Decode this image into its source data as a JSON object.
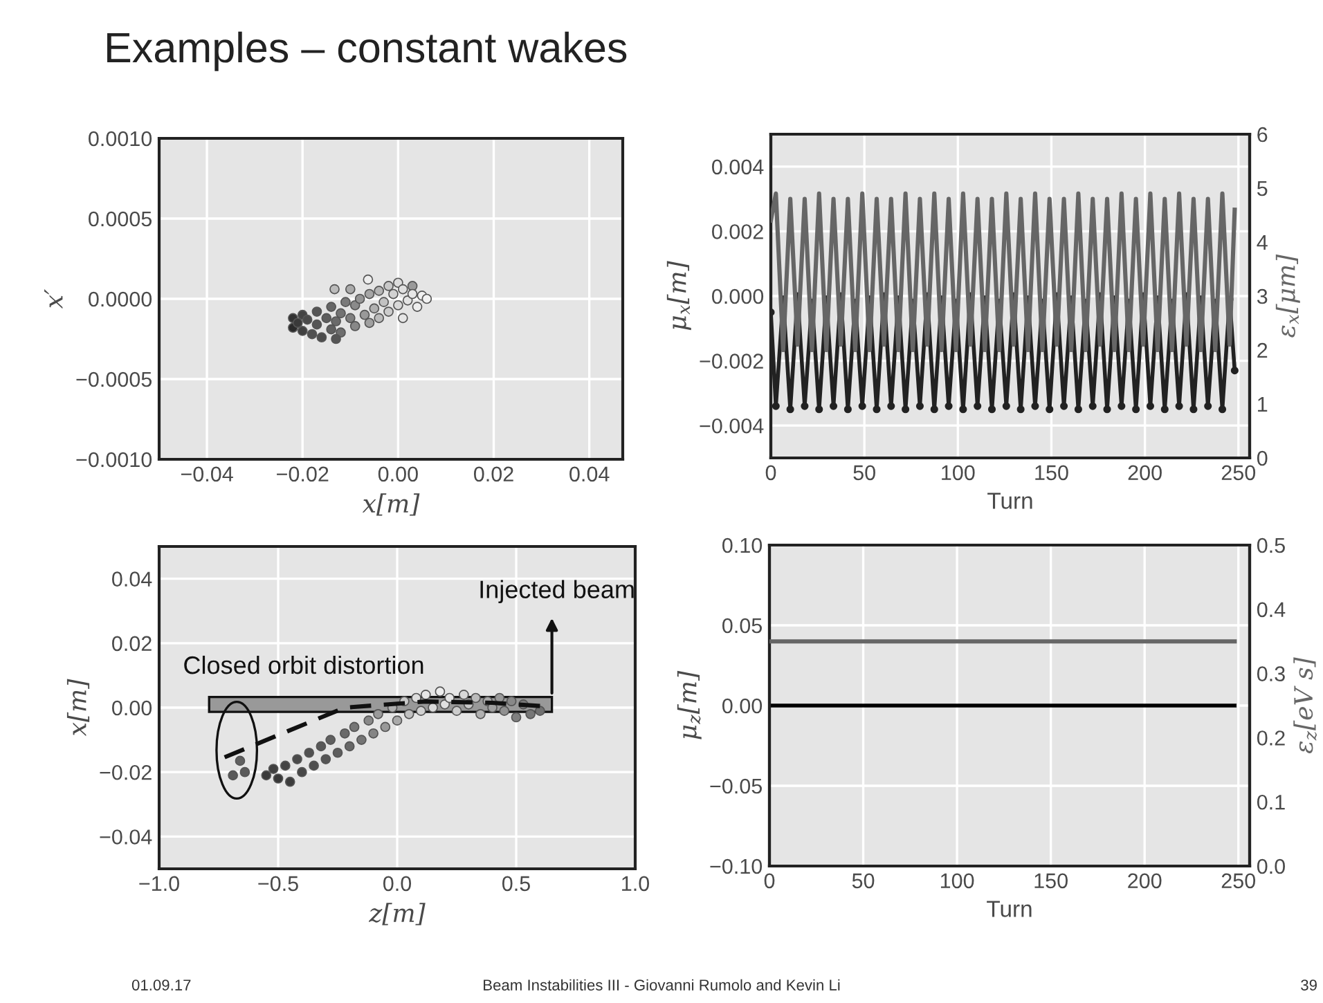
{
  "chart_data": [
    {
      "type": "scatter",
      "title": "Examples – constant wakes",
      "ylabel": "x′",
      "xlim": [
        -0.05,
        0.047
      ],
      "ylim": [
        -0.001,
        0.001
      ],
      "grid": true,
      "marker": "circle",
      "xticks": [
        {
          "value": -0.04,
          "label": "−0.04"
        },
        {
          "value": -0.02,
          "label": "−0.02"
        },
        {
          "value": 0.0,
          "label": "0.00"
        },
        0.02,
        0.04
      ],
      "yticks": [
        {
          "value": -0.001,
          "label": "−0.0010"
        },
        {
          "value": -0.0005,
          "label": "−0.0005"
        },
        {
          "value": 0.0,
          "label": "0.0000"
        },
        {
          "value": 0.0005,
          "label": "0.0005"
        },
        {
          "value": 0.001,
          "label": "0.0010"
        }
      ],
      "xlabel": "x[m]",
      "series": [
        {
          "x": [
            -0.022,
            -0.022,
            -0.021,
            -0.02,
            -0.02,
            -0.019,
            -0.018,
            -0.017,
            -0.017,
            -0.016,
            -0.015,
            -0.014,
            -0.014,
            -0.013,
            -0.012,
            -0.012,
            -0.011,
            -0.01,
            -0.009,
            -0.009,
            -0.008,
            -0.007,
            -0.006,
            -0.006,
            -0.005,
            -0.004,
            -0.004,
            -0.003,
            -0.002,
            -0.002,
            -0.001,
            0.0,
            0.0,
            0.001,
            0.002,
            0.003,
            0.003,
            0.004,
            0.005,
            0.006,
            -0.01,
            -0.013,
            0.001,
            -0.0063,
            -0.0133
          ],
          "values": [
            -0.00012,
            -0.00018,
            -0.00015,
            -0.0001,
            -0.0002,
            -0.00013,
            -0.00022,
            -8e-05,
            -0.00016,
            -0.00024,
            -0.00012,
            -5e-05,
            -0.00019,
            -0.00014,
            -9e-05,
            -0.00021,
            -2e-05,
            -0.00012,
            -0.00017,
            -4e-05,
            0.0,
            -0.0001,
            -0.00015,
            3e-05,
            -6e-05,
            5e-05,
            -0.00012,
            -2e-05,
            8e-05,
            -8e-05,
            3e-05,
            -4e-05,
            0.0001,
            6e-05,
            -1e-05,
            8e-05,
            3e-05,
            -5e-05,
            2e-05,
            0.0,
            6e-05,
            -0.00025,
            -0.00012,
            0.00012,
            6e-05
          ],
          "colors": [
            "#333333",
            "#2a2a2a",
            "#3a3a3a",
            "#444444",
            "#404040",
            "#4a4a4a",
            "#505050",
            "#555555",
            "#555555",
            "#4d4d4d",
            "#5e5e5e",
            "#666666",
            "#606060",
            "#6a6a6a",
            "#737373",
            "#6e6e6e",
            "#7a7a7a",
            "#808080",
            "#888888",
            "#8a8a8a",
            "#959595",
            "#999999",
            "#a0a0a0",
            "#a6a6a6",
            "#b0b0b0",
            "#b5b5b5",
            "#bbbbbb",
            "#c2c2c2",
            "#c8c8c8",
            "#cccccc",
            "#d2d2d2",
            "#d8d8d8",
            "#dddddd",
            "#e0e0e0",
            "#e4e4e4",
            "#999999",
            "#e8e8e8",
            "#eeeeee",
            "#f0f0f0",
            "#f2f2f2",
            "#aaaaaa",
            "#555555",
            "#e6e6e6",
            "#eeeeee",
            "#bbbbbb"
          ]
        }
      ]
    },
    {
      "type": "line",
      "xlabel": "Turn",
      "ylabel": "μ$_{x}$[m]",
      "y2label": "ε$_{x}$[μm]",
      "xlim": [
        0,
        256
      ],
      "ylim": [
        -0.005,
        0.005
      ],
      "y2lim": [
        0,
        6
      ],
      "grid": true,
      "xticks": [
        0,
        50,
        100,
        150,
        200,
        250
      ],
      "yticks": [
        {
          "value": -0.004,
          "label": "−0.004"
        },
        {
          "value": -0.002,
          "label": "−0.002"
        },
        {
          "value": 0.0,
          "label": "0.000"
        },
        0.002,
        0.004
      ],
      "y2ticks": [
        0,
        1,
        2,
        3,
        4,
        5,
        6
      ],
      "x": [
        0,
        2.7,
        6.6,
        10.4,
        14.3,
        18.1,
        22.0,
        25.8,
        29.7,
        33.5,
        37.4,
        41.2,
        45.1,
        48.9,
        52.8,
        56.6,
        60.5,
        64.3,
        68.2,
        72.0,
        75.9,
        79.7,
        83.6,
        87.4,
        91.3,
        95.1,
        99.0,
        102.8,
        106.7,
        110.5,
        114.4,
        118.2,
        122.1,
        125.9,
        129.8,
        133.6,
        137.5,
        141.3,
        145.2,
        149.0,
        152.9,
        156.7,
        160.6,
        164.4,
        168.3,
        172.1,
        176.0,
        179.8,
        183.7,
        187.5,
        191.4,
        195.2,
        199.1,
        202.9,
        206.8,
        210.6,
        214.5,
        218.3,
        222.2,
        226.0,
        229.9,
        233.7,
        237.6,
        241.4,
        245.3,
        248
      ],
      "series": [
        {
          "axis": "y2",
          "color": "#666666",
          "marker": "none",
          "values": [
            4.4,
            4.9,
            2.0,
            4.8,
            2.1,
            4.8,
            2.0,
            4.9,
            2.0,
            4.8,
            2.1,
            4.8,
            2.0,
            4.9,
            2.0,
            4.8,
            2.1,
            4.8,
            2.0,
            4.9,
            2.0,
            4.8,
            2.1,
            4.9,
            2.0,
            4.8,
            2.0,
            4.9,
            2.1,
            4.8,
            2.0,
            4.8,
            2.0,
            4.9,
            2.1,
            4.8,
            2.0,
            4.9,
            2.0,
            4.8,
            2.1,
            4.8,
            2.0,
            4.9,
            2.0,
            4.8,
            2.1,
            4.8,
            2.0,
            4.9,
            2.0,
            4.8,
            2.1,
            4.9,
            2.0,
            4.8,
            2.0,
            4.9,
            2.1,
            4.8,
            2.0,
            4.8,
            2.0,
            4.9,
            2.1,
            4.6
          ]
        },
        {
          "axis": "y",
          "color": "#222222",
          "marker": "circle",
          "values": [
            -0.0005,
            -0.0034,
            -0.0001,
            -0.0035,
            0.0,
            -0.0034,
            -0.0002,
            -0.0035,
            -0.0001,
            -0.0034,
            0.0,
            -0.0035,
            -0.0002,
            -0.0034,
            -0.0001,
            -0.0035,
            0.0,
            -0.0034,
            -0.0001,
            -0.0035,
            -0.0002,
            -0.0034,
            0.0,
            -0.0035,
            -0.0001,
            -0.0034,
            -0.0002,
            -0.0035,
            0.0,
            -0.0034,
            -0.0001,
            -0.0035,
            -0.0002,
            -0.0034,
            0.0,
            -0.0035,
            -0.0001,
            -0.0034,
            -0.0002,
            -0.0035,
            0.0,
            -0.0034,
            -0.0001,
            -0.0035,
            -0.0002,
            -0.0034,
            0.0,
            -0.0035,
            -0.0001,
            -0.0034,
            -0.0002,
            -0.0035,
            0.0,
            -0.0034,
            -0.0001,
            -0.0035,
            -0.0002,
            -0.0034,
            0.0,
            -0.0035,
            -0.0001,
            -0.0034,
            -0.0002,
            -0.0035,
            -0.0001,
            -0.0023
          ]
        }
      ]
    },
    {
      "type": "scatter",
      "xlabel": "z[m]",
      "ylabel": "x[m]",
      "xlim": [
        -1.0,
        1.0
      ],
      "ylim": [
        -0.05,
        0.05
      ],
      "grid": true,
      "marker": "circle",
      "xticks": [
        {
          "value": -1.0,
          "label": "−1.0"
        },
        {
          "value": -0.5,
          "label": "−0.5"
        },
        {
          "value": 0.0,
          "label": "0.0"
        },
        0.5,
        {
          "value": 1.0,
          "label": "1.0"
        }
      ],
      "yticks": [
        {
          "value": -0.04,
          "label": "−0.04"
        },
        {
          "value": -0.02,
          "label": "−0.02"
        },
        {
          "value": 0.0,
          "label": "0.00"
        },
        0.02,
        0.04
      ],
      "annotations": [
        "Closed orbit distortion",
        "Injected beam"
      ],
      "series": [
        {
          "x": [
            -0.55,
            -0.52,
            -0.5,
            -0.47,
            -0.45,
            -0.42,
            -0.4,
            -0.37,
            -0.35,
            -0.32,
            -0.3,
            -0.28,
            -0.25,
            -0.22,
            -0.2,
            -0.18,
            -0.15,
            -0.12,
            -0.1,
            -0.08,
            -0.05,
            -0.02,
            0.0,
            0.03,
            0.05,
            0.08,
            0.1,
            0.12,
            0.15,
            0.18,
            0.2,
            0.22,
            0.25,
            0.28,
            0.3,
            0.33,
            0.35,
            0.38,
            0.4,
            0.43,
            0.45,
            0.48,
            0.5,
            0.53,
            0.56,
            0.6,
            -0.66,
            -0.69,
            -0.64
          ],
          "values": [
            -0.021,
            -0.019,
            -0.022,
            -0.018,
            -0.023,
            -0.016,
            -0.02,
            -0.014,
            -0.018,
            -0.012,
            -0.016,
            -0.01,
            -0.014,
            -0.008,
            -0.012,
            -0.006,
            -0.01,
            -0.004,
            -0.008,
            -0.002,
            -0.006,
            0.0,
            -0.004,
            0.002,
            -0.002,
            0.003,
            -0.001,
            0.004,
            0.0,
            0.005,
            0.001,
            0.003,
            -0.001,
            0.004,
            0.001,
            0.003,
            -0.002,
            0.002,
            0.0,
            0.003,
            -0.001,
            0.002,
            -0.003,
            0.001,
            -0.002,
            -0.001,
            -0.0165,
            -0.021,
            -0.02
          ],
          "colors": [
            "#3a3a3a",
            "#404040",
            "#383838",
            "#444444",
            "#3c3c3c",
            "#4a4a4a",
            "#474747",
            "#505050",
            "#4e4e4e",
            "#585858",
            "#555555",
            "#606060",
            "#5e5e5e",
            "#6a6a6a",
            "#686868",
            "#767676",
            "#747474",
            "#888888",
            "#858585",
            "#9a9a9a",
            "#999999",
            "#b0b0b0",
            "#aaaaaa",
            "#c8c8c8",
            "#c0c0c0",
            "#dddddd",
            "#d0d0d0",
            "#e8e8e8",
            "#dadada",
            "#eeeeee",
            "#e0e0e0",
            "#e4e4e4",
            "#cccccc",
            "#d8d8d8",
            "#c8c8c8",
            "#bbbbbb",
            "#b0b0b0",
            "#aaaaaa",
            "#a0a0a0",
            "#999999",
            "#909090",
            "#888888",
            "#808080",
            "#7a7a7a",
            "#777777",
            "#707070",
            "#606060",
            "#5a5a5a",
            "#5a5a5a"
          ]
        },
        {
          "type": "line",
          "color": "#111111",
          "line_style": "dashed",
          "marker": "none",
          "x": [
            -0.725,
            -0.45,
            -0.22,
            0.12,
            0.4,
            0.62
          ],
          "values": [
            -0.0154,
            -0.007,
            0.0,
            0.0019,
            0.0015,
            0.0004
          ]
        }
      ]
    },
    {
      "type": "line",
      "xlabel": "Turn",
      "ylabel": "μ$_{z}$[m]",
      "y2label": "ε$_{z}$[eV s]",
      "xlim": [
        0,
        256
      ],
      "ylim": [
        -0.1,
        0.1
      ],
      "y2lim": [
        0,
        0.5
      ],
      "grid": true,
      "xticks": [
        0,
        50,
        100,
        150,
        200,
        250
      ],
      "yticks": [
        {
          "value": -0.1,
          "label": "−0.10"
        },
        {
          "value": -0.05,
          "label": "−0.05"
        },
        {
          "value": 0.0,
          "label": "0.00"
        },
        0.05,
        {
          "value": 0.1,
          "label": "0.10"
        }
      ],
      "y2ticks": [
        {
          "value": 0.0,
          "label": "0.0"
        },
        0.1,
        0.2,
        0.3,
        0.4,
        0.5
      ],
      "x": [
        0,
        248
      ],
      "annotations": [
        "01.09.17",
        "Beam Instabilities III - Giovanni Rumolo and Kevin Li",
        "39"
      ],
      "series": [
        {
          "axis": "y2",
          "color": "#666666",
          "marker": "none",
          "values": [
            0.35,
            0.35
          ]
        },
        {
          "axis": "y",
          "color": "#000000",
          "marker": "none",
          "values": [
            0.0,
            0.0
          ]
        }
      ]
    }
  ]
}
